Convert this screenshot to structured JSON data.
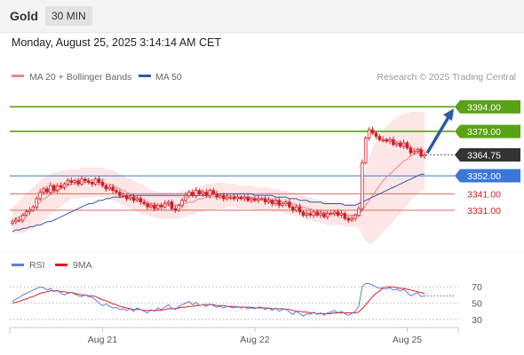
{
  "header": {
    "title": "Gold",
    "timeframe": "30 MIN"
  },
  "timestamp": "Monday, August 25, 2025 3:14:14 AM CET",
  "credit": "Research © 2025 Trading Central",
  "colors": {
    "candle": "#cc2229",
    "resistance": "#5aa215",
    "support": "#e06666",
    "pivot": "#3a78d8",
    "ma50": "#2d5aa6",
    "ma20": "#e88888",
    "band": "#fde2e2",
    "current": "#333333",
    "arrow": "#2d5aa6",
    "rsi": "#5b7ed9",
    "rsi_ma": "#dd1d1d"
  },
  "chart_data": [
    {
      "type": "candlestick",
      "legend": [
        {
          "name": "MA 20 + Bollinger Bands",
          "color": "#e88888"
        },
        {
          "name": "MA 50",
          "color": "#2d5aa6"
        }
      ],
      "x_tick_labels": [
        "Aug 21",
        "Aug 22",
        "Aug 25"
      ],
      "ylim": [
        3305,
        3405
      ],
      "levels": [
        {
          "label": "3394.00",
          "value": 3394.0,
          "kind": "resistance"
        },
        {
          "label": "3379.00",
          "value": 3379.0,
          "kind": "resistance"
        },
        {
          "label": "3364.75",
          "value": 3364.75,
          "kind": "current"
        },
        {
          "label": "3352.00",
          "value": 3352.0,
          "kind": "pivot"
        },
        {
          "label": "3341.00",
          "value": 3341.0,
          "kind": "support"
        },
        {
          "label": "3331.00",
          "value": 3331.0,
          "kind": "support"
        }
      ],
      "close": [
        3324,
        3325,
        3325,
        3328,
        3330,
        3331,
        3333,
        3338,
        3342,
        3344,
        3342,
        3346,
        3343,
        3346,
        3345,
        3347,
        3349,
        3348,
        3349,
        3347,
        3350,
        3349,
        3348,
        3347,
        3350,
        3348,
        3346,
        3344,
        3345,
        3343,
        3342,
        3340,
        3340,
        3338,
        3339,
        3337,
        3338,
        3336,
        3335,
        3333,
        3334,
        3332,
        3334,
        3333,
        3335,
        3336,
        3332,
        3331,
        3334,
        3337,
        3340,
        3342,
        3340,
        3343,
        3341,
        3342,
        3340,
        3343,
        3341,
        3339,
        3340,
        3338,
        3339,
        3339,
        3338,
        3339,
        3338,
        3339,
        3337,
        3338,
        3337,
        3338,
        3338,
        3336,
        3337,
        3335,
        3337,
        3334,
        3335,
        3336,
        3333,
        3331,
        3333,
        3330,
        3328,
        3329,
        3328,
        3330,
        3328,
        3329,
        3327,
        3329,
        3329,
        3330,
        3328,
        3329,
        3326,
        3325,
        3326,
        3328,
        3332,
        3360,
        3375,
        3380,
        3378,
        3376,
        3374,
        3374,
        3373,
        3374,
        3371,
        3372,
        3370,
        3372,
        3369,
        3366,
        3367,
        3368,
        3364,
        3364.75
      ],
      "ma20": [
        3325,
        3326,
        3327,
        3328,
        3330,
        3331,
        3332,
        3334,
        3336,
        3338,
        3339,
        3341,
        3342,
        3343,
        3344,
        3345,
        3346,
        3347,
        3347,
        3347,
        3348,
        3348,
        3348,
        3348,
        3348,
        3348,
        3348,
        3347,
        3347,
        3346,
        3345,
        3344,
        3343,
        3342,
        3341,
        3340,
        3339,
        3338,
        3337,
        3336,
        3335,
        3335,
        3334,
        3334,
        3334,
        3334,
        3334,
        3334,
        3334,
        3335,
        3335,
        3336,
        3336,
        3337,
        3338,
        3338,
        3339,
        3339,
        3339,
        3340,
        3340,
        3340,
        3340,
        3340,
        3340,
        3339,
        3339,
        3339,
        3339,
        3339,
        3338,
        3338,
        3338,
        3338,
        3338,
        3337,
        3337,
        3337,
        3336,
        3336,
        3335,
        3335,
        3334,
        3334,
        3333,
        3332,
        3332,
        3331,
        3331,
        3330,
        3330,
        3329,
        3329,
        3329,
        3329,
        3329,
        3328,
        3328,
        3328,
        3328,
        3329,
        3331,
        3334,
        3337,
        3340,
        3343,
        3346,
        3349,
        3351,
        3353,
        3355,
        3357,
        3359,
        3361,
        3362,
        3364,
        3365,
        3366,
        3367,
        3367
      ],
      "ma50": [
        3318,
        3319,
        3319,
        3320,
        3320,
        3321,
        3321,
        3322,
        3322,
        3323,
        3324,
        3324,
        3325,
        3326,
        3327,
        3328,
        3329,
        3330,
        3331,
        3332,
        3333,
        3334,
        3335,
        3335,
        3336,
        3337,
        3337,
        3338,
        3338,
        3339,
        3339,
        3339,
        3339,
        3340,
        3340,
        3340,
        3340,
        3340,
        3340,
        3340,
        3340,
        3340,
        3340,
        3340,
        3340,
        3340,
        3340,
        3340,
        3340,
        3340,
        3340,
        3340,
        3340,
        3340,
        3340,
        3340,
        3340,
        3340,
        3341,
        3341,
        3341,
        3341,
        3341,
        3341,
        3341,
        3341,
        3341,
        3341,
        3341,
        3341,
        3340,
        3340,
        3340,
        3340,
        3340,
        3340,
        3339,
        3339,
        3339,
        3339,
        3338,
        3338,
        3338,
        3337,
        3337,
        3337,
        3336,
        3336,
        3336,
        3336,
        3335,
        3335,
        3335,
        3335,
        3335,
        3335,
        3334,
        3334,
        3334,
        3334,
        3335,
        3336,
        3337,
        3338,
        3339,
        3340,
        3341,
        3342,
        3343,
        3344,
        3345,
        3346,
        3347,
        3348,
        3349,
        3350,
        3351,
        3352,
        3353,
        3353
      ],
      "band_width": [
        8,
        9,
        10,
        11,
        12,
        12,
        13,
        13,
        13,
        13,
        13,
        12,
        12,
        11,
        11,
        10,
        10,
        9,
        9,
        9,
        9,
        9,
        9,
        9,
        9,
        9,
        9,
        9,
        9,
        9,
        9,
        9,
        9,
        9,
        9,
        9,
        9,
        9,
        9,
        8,
        8,
        8,
        8,
        8,
        8,
        8,
        8,
        8,
        8,
        8,
        8,
        8,
        8,
        8,
        8,
        8,
        8,
        8,
        8,
        8,
        8,
        8,
        7,
        7,
        7,
        7,
        7,
        7,
        7,
        7,
        7,
        7,
        7,
        7,
        7,
        7,
        7,
        7,
        7,
        7,
        7,
        7,
        7,
        7,
        7,
        7,
        7,
        7,
        7,
        7,
        7,
        7,
        7,
        7,
        7,
        7,
        7,
        7,
        7,
        7,
        8,
        15,
        22,
        26,
        29,
        30,
        31,
        31,
        31,
        31,
        31,
        30,
        30,
        29,
        28,
        27,
        26,
        25,
        24,
        24
      ]
    },
    {
      "type": "line",
      "legend": [
        {
          "name": "RSI",
          "color": "#5b7ed9"
        },
        {
          "name": "9MA",
          "color": "#dd1d1d"
        }
      ],
      "y_tick_labels": [
        "70",
        "50",
        "30"
      ],
      "ylim": [
        20,
        80
      ],
      "rsi": [
        52,
        55,
        57,
        60,
        62,
        64,
        66,
        68,
        70,
        69,
        66,
        68,
        64,
        66,
        62,
        60,
        62,
        63,
        61,
        59,
        58,
        60,
        58,
        57,
        54,
        50,
        47,
        49,
        46,
        44,
        45,
        42,
        43,
        41,
        43,
        40,
        44,
        42,
        40,
        38,
        42,
        40,
        44,
        42,
        45,
        48,
        44,
        42,
        46,
        48,
        50,
        52,
        48,
        51,
        47,
        48,
        46,
        49,
        47,
        45,
        46,
        44,
        46,
        45,
        44,
        46,
        44,
        45,
        43,
        44,
        43,
        45,
        45,
        42,
        44,
        41,
        44,
        40,
        42,
        43,
        39,
        36,
        40,
        37,
        34,
        37,
        36,
        39,
        36,
        38,
        35,
        38,
        39,
        41,
        38,
        40,
        37,
        35,
        37,
        40,
        46,
        70,
        74,
        74,
        72,
        70,
        68,
        69,
        67,
        69,
        66,
        67,
        65,
        67,
        63,
        59,
        61,
        63,
        58,
        59
      ],
      "rsi_ma": [
        50,
        51,
        52,
        54,
        55,
        57,
        58,
        60,
        62,
        63,
        64,
        65,
        65,
        65,
        64,
        64,
        63,
        63,
        62,
        61,
        60,
        60,
        59,
        59,
        58,
        56,
        54,
        53,
        51,
        49,
        48,
        46,
        45,
        44,
        43,
        42,
        42,
        42,
        41,
        41,
        41,
        41,
        41,
        41,
        42,
        43,
        43,
        43,
        44,
        45,
        45,
        46,
        46,
        47,
        47,
        48,
        48,
        48,
        48,
        47,
        47,
        47,
        46,
        46,
        46,
        45,
        45,
        45,
        45,
        45,
        44,
        44,
        44,
        44,
        44,
        43,
        43,
        43,
        43,
        42,
        42,
        41,
        40,
        40,
        39,
        39,
        38,
        38,
        37,
        37,
        37,
        37,
        37,
        38,
        38,
        38,
        38,
        38,
        38,
        38,
        39,
        43,
        48,
        53,
        58,
        62,
        65,
        68,
        70,
        70,
        70,
        69,
        68,
        68,
        67,
        66,
        65,
        64,
        63,
        62
      ]
    }
  ]
}
